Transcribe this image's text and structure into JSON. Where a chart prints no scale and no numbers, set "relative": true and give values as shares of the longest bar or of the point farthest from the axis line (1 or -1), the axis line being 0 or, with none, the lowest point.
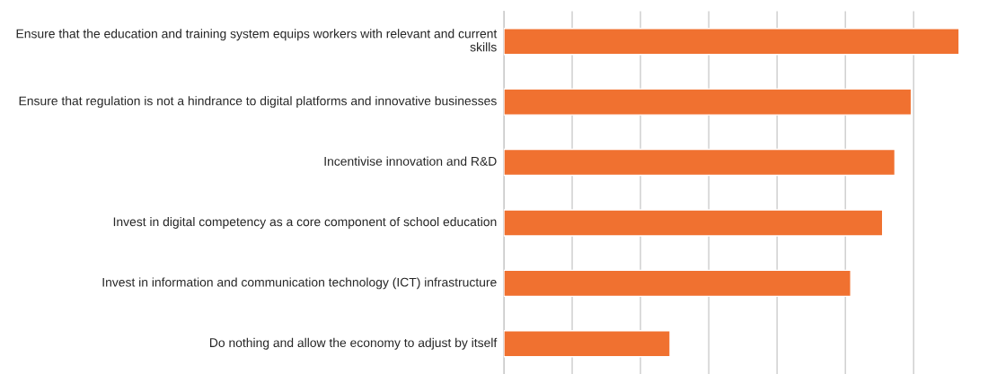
{
  "chart_data": {
    "type": "bar",
    "orientation": "horizontal",
    "relative": true,
    "grid": "x",
    "categories": [
      "Ensure that the education and training system equips workers with relevant and current skills",
      "Ensure that regulation is not a hindrance to digital platforms and innovative businesses",
      "Incentivise innovation and R&D",
      "Invest in digital competency as a core component of school education",
      "Invest in information and communication technology (ICT) infrastructure",
      "Do nothing and allow the economy to adjust by itself"
    ],
    "values": [
      1,
      0.895,
      0.859,
      0.832,
      0.762,
      0.365
    ],
    "color": "#f07130"
  }
}
